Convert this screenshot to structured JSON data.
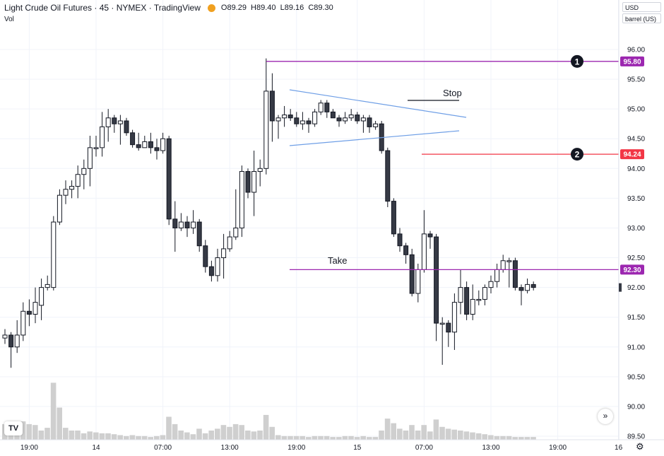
{
  "header": {
    "title": "Light Crude Oil Futures · 45 · NYMEX · TradingView",
    "open": "O89.29",
    "high": "H89.40",
    "low": "L89.16",
    "close": "C89.30",
    "vol_label": "Vol"
  },
  "controls": {
    "currency": "USD",
    "unit": "barrel (US)",
    "scroll_icon": "double-chevron-right-icon",
    "settings_icon": "gear-icon",
    "logo": "tv-logo"
  },
  "colors": {
    "up": "#ffffff",
    "down": "#363a45",
    "wick": "#131722",
    "volume": "#cfcfcf",
    "purple": "#9c27b0",
    "red": "#f23645",
    "trend": "#6f9fe6"
  },
  "chart_data": {
    "type": "candlestick",
    "ylim": [
      89.4,
      96.4
    ],
    "yticks": [
      {
        "v": 96.0,
        "label": "96.00"
      },
      {
        "v": 95.5,
        "label": "95.50"
      },
      {
        "v": 95.0,
        "label": "95.00"
      },
      {
        "v": 94.5,
        "label": "94.50"
      },
      {
        "v": 94.0,
        "label": "94.00"
      },
      {
        "v": 93.5,
        "label": "93.50"
      },
      {
        "v": 93.0,
        "label": "93.00"
      },
      {
        "v": 92.5,
        "label": "92.50"
      },
      {
        "v": 92.0,
        "label": "92.00"
      },
      {
        "v": 91.5,
        "label": "91.50"
      },
      {
        "v": 91.0,
        "label": "91.00"
      },
      {
        "v": 90.5,
        "label": "90.50"
      },
      {
        "v": 90.0,
        "label": "90.00"
      },
      {
        "v": 89.5,
        "label": "89.50"
      }
    ],
    "xticks": [
      {
        "i": 4,
        "label": "19:00"
      },
      {
        "i": 15,
        "label": "14"
      },
      {
        "i": 26,
        "label": "07:00"
      },
      {
        "i": 37,
        "label": "13:00"
      },
      {
        "i": 48,
        "label": "19:00"
      },
      {
        "i": 58,
        "label": "15"
      },
      {
        "i": 69,
        "label": "07:00"
      },
      {
        "i": 80,
        "label": "13:00"
      },
      {
        "i": 91,
        "label": "19:00"
      },
      {
        "i": 101,
        "label": "16"
      }
    ],
    "candles": [
      [
        91.15,
        91.2,
        91.3,
        91.05,
        17
      ],
      [
        91.2,
        91.0,
        91.25,
        90.65,
        13
      ],
      [
        91.0,
        91.2,
        91.45,
        90.9,
        18
      ],
      [
        91.2,
        91.6,
        91.75,
        91.1,
        20
      ],
      [
        91.6,
        91.55,
        91.8,
        91.35,
        17
      ],
      [
        91.55,
        91.75,
        92.0,
        91.4,
        16
      ],
      [
        91.7,
        92.0,
        92.15,
        91.45,
        10
      ],
      [
        92.0,
        92.05,
        92.2,
        91.95,
        13
      ],
      [
        92.0,
        93.1,
        93.2,
        91.95,
        62
      ],
      [
        93.1,
        93.55,
        93.65,
        93.05,
        35
      ],
      [
        93.55,
        93.65,
        93.8,
        93.4,
        13
      ],
      [
        93.65,
        93.7,
        93.8,
        93.5,
        10
      ],
      [
        93.7,
        93.9,
        94.05,
        93.5,
        10
      ],
      [
        93.9,
        94.0,
        94.15,
        93.65,
        7
      ],
      [
        94.0,
        94.35,
        94.55,
        93.7,
        9
      ],
      [
        94.35,
        94.35,
        94.55,
        94.2,
        8
      ],
      [
        94.35,
        94.7,
        94.95,
        94.2,
        7
      ],
      [
        94.7,
        94.85,
        95.0,
        94.45,
        7
      ],
      [
        94.85,
        94.75,
        94.9,
        94.6,
        6
      ],
      [
        94.75,
        94.8,
        94.9,
        94.4,
        5
      ],
      [
        94.8,
        94.6,
        94.85,
        94.55,
        4
      ],
      [
        94.6,
        94.4,
        94.65,
        94.35,
        5
      ],
      [
        94.4,
        94.35,
        94.6,
        94.3,
        4
      ],
      [
        94.35,
        94.45,
        94.55,
        94.35,
        4
      ],
      [
        94.45,
        94.35,
        94.6,
        94.25,
        3
      ],
      [
        94.35,
        94.3,
        94.5,
        94.15,
        4
      ],
      [
        94.3,
        94.5,
        94.6,
        94.25,
        5
      ],
      [
        94.5,
        93.15,
        94.55,
        93.05,
        25
      ],
      [
        93.15,
        93.0,
        93.45,
        92.6,
        17
      ],
      [
        93.0,
        93.1,
        93.25,
        92.95,
        10
      ],
      [
        93.1,
        93.0,
        93.2,
        92.85,
        8
      ],
      [
        93.0,
        93.1,
        93.3,
        92.9,
        6
      ],
      [
        93.1,
        92.7,
        93.15,
        92.6,
        12
      ],
      [
        92.7,
        92.35,
        92.8,
        92.25,
        7
      ],
      [
        92.35,
        92.2,
        92.45,
        92.1,
        10
      ],
      [
        92.2,
        92.5,
        92.65,
        92.1,
        12
      ],
      [
        92.5,
        92.65,
        92.9,
        92.15,
        16
      ],
      [
        92.65,
        92.85,
        92.95,
        92.6,
        14
      ],
      [
        92.85,
        93.0,
        93.65,
        92.8,
        17
      ],
      [
        93.0,
        93.95,
        94.05,
        92.85,
        16
      ],
      [
        93.95,
        93.6,
        94.0,
        93.5,
        10
      ],
      [
        93.6,
        93.95,
        94.3,
        93.2,
        9
      ],
      [
        93.95,
        94.0,
        94.15,
        93.7,
        10
      ],
      [
        94.0,
        95.3,
        95.85,
        93.9,
        27
      ],
      [
        95.3,
        94.8,
        95.6,
        94.45,
        14
      ],
      [
        94.8,
        94.85,
        94.9,
        94.5,
        5
      ],
      [
        94.85,
        94.9,
        95.05,
        94.7,
        4
      ],
      [
        94.9,
        94.85,
        95.0,
        94.8,
        4
      ],
      [
        94.85,
        94.75,
        94.95,
        94.7,
        4
      ],
      [
        94.75,
        94.8,
        94.95,
        94.65,
        4
      ],
      [
        94.8,
        94.75,
        94.85,
        94.6,
        3
      ],
      [
        94.75,
        94.95,
        95.0,
        94.7,
        4
      ],
      [
        94.95,
        95.1,
        95.15,
        94.9,
        4
      ],
      [
        95.1,
        94.95,
        95.15,
        94.85,
        4
      ],
      [
        94.95,
        94.85,
        95.0,
        94.85,
        3
      ],
      [
        94.85,
        94.8,
        94.9,
        94.7,
        3
      ],
      [
        94.8,
        94.85,
        94.95,
        94.75,
        4
      ],
      [
        94.85,
        94.9,
        95.0,
        94.8,
        4
      ],
      [
        94.9,
        94.8,
        94.95,
        94.75,
        3
      ],
      [
        94.8,
        94.85,
        94.9,
        94.6,
        4
      ],
      [
        94.85,
        94.7,
        94.9,
        94.6,
        3
      ],
      [
        94.7,
        94.75,
        94.8,
        94.65,
        3
      ],
      [
        94.75,
        94.3,
        94.8,
        94.25,
        10
      ],
      [
        94.3,
        93.45,
        94.35,
        93.35,
        23
      ],
      [
        93.45,
        92.9,
        93.5,
        92.85,
        18
      ],
      [
        92.9,
        92.7,
        93.0,
        92.6,
        12
      ],
      [
        92.7,
        92.55,
        92.75,
        92.4,
        10
      ],
      [
        92.55,
        91.9,
        92.65,
        91.85,
        16
      ],
      [
        91.9,
        92.3,
        92.4,
        91.75,
        10
      ],
      [
        92.3,
        92.9,
        93.3,
        92.25,
        16
      ],
      [
        92.9,
        92.85,
        92.95,
        92.65,
        9
      ],
      [
        92.85,
        91.4,
        92.9,
        91.1,
        22
      ],
      [
        91.4,
        91.4,
        91.5,
        90.7,
        14
      ],
      [
        91.4,
        91.25,
        91.45,
        91.0,
        12
      ],
      [
        91.25,
        91.75,
        91.9,
        90.95,
        11
      ],
      [
        91.75,
        92.0,
        92.3,
        91.55,
        10
      ],
      [
        92.0,
        91.55,
        92.1,
        91.45,
        9
      ],
      [
        91.55,
        91.8,
        92.05,
        91.45,
        8
      ],
      [
        91.8,
        91.8,
        91.95,
        91.7,
        7
      ],
      [
        91.8,
        92.0,
        92.05,
        91.7,
        6
      ],
      [
        92.0,
        92.1,
        92.2,
        91.9,
        5
      ],
      [
        92.1,
        92.3,
        92.4,
        92.0,
        4
      ],
      [
        92.3,
        92.45,
        92.55,
        92.25,
        4
      ],
      [
        92.45,
        92.45,
        92.5,
        92.0,
        4
      ],
      [
        92.45,
        92.0,
        92.5,
        91.95,
        3
      ],
      [
        92.0,
        91.95,
        92.05,
        91.7,
        3
      ],
      [
        91.95,
        92.05,
        92.15,
        91.9,
        3
      ],
      [
        92.05,
        92.0,
        92.1,
        91.95,
        3
      ]
    ],
    "levels": [
      {
        "price": 95.8,
        "label": "95.80",
        "marker": "1",
        "color": "purple"
      },
      {
        "price": 94.24,
        "label": "94.24",
        "marker": "2",
        "color": "red"
      },
      {
        "price": 92.3,
        "label": "92.30",
        "text": "Take",
        "color": "purple"
      }
    ],
    "annotations": [
      {
        "text": "Stop"
      },
      {
        "text": "Take"
      }
    ]
  }
}
